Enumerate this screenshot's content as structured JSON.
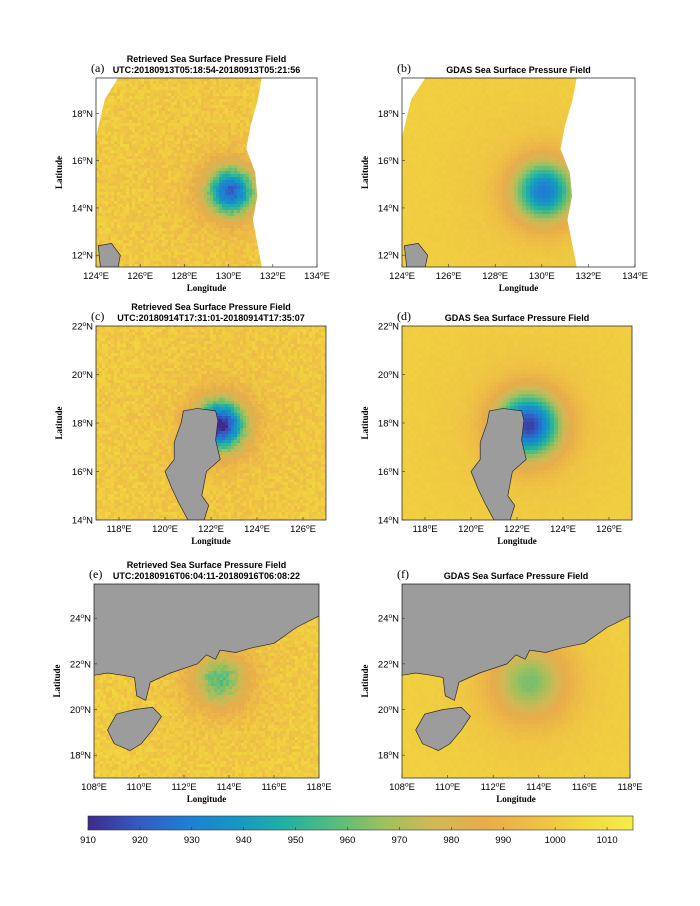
{
  "figure_name": "Sea Surface Pressure Field Comparison",
  "colors": {
    "land": "#9c9c9c",
    "land_edge": "#2a2a2a",
    "colormap": [
      "#3d2a8f",
      "#3559c0",
      "#1e7fd3",
      "#1696c4",
      "#22b1a2",
      "#57bd7c",
      "#9fc05d",
      "#d1b855",
      "#e8ac4b",
      "#eebe45",
      "#f2d93d",
      "#f5ed4a"
    ]
  },
  "chart_data": [
    {
      "type": "heatmap",
      "id": "a",
      "panel_label": "(a)",
      "title": "Retrieved Sea Surface Pressure Field",
      "subtitle": "UTC:20180913T05:18:54-20180913T05:21:56",
      "xlabel": "Longitude",
      "ylabel": "Latitude",
      "xlim": [
        124,
        134
      ],
      "ylim": [
        11.5,
        19.5
      ],
      "xticks": [
        124,
        126,
        128,
        130,
        132,
        134
      ],
      "yticks": [
        12,
        14,
        16,
        18
      ],
      "field": "retrieved",
      "center": [
        130.1,
        14.7
      ],
      "radius_deg": 1.1,
      "min_hpa": 925,
      "ambient_hpa": 1000,
      "swath_east_edge": [
        [
          19.5,
          131.5
        ],
        [
          18.5,
          131.3
        ],
        [
          17.5,
          131.0
        ],
        [
          16.5,
          130.8
        ],
        [
          15.5,
          131.2
        ],
        [
          14.5,
          131.3
        ],
        [
          13.5,
          131.1
        ],
        [
          12.5,
          131.3
        ],
        [
          11.5,
          131.5
        ]
      ],
      "swath_west_edge": [
        [
          19.5,
          125.0
        ],
        [
          18.6,
          124.4
        ],
        [
          17.8,
          124.2
        ],
        [
          17.0,
          124.0
        ]
      ],
      "land": [
        [
          [
            124.1,
            12.4
          ],
          [
            124.7,
            12.5
          ],
          [
            125.1,
            12.0
          ],
          [
            125.0,
            11.5
          ],
          [
            124.2,
            11.5
          ]
        ]
      ]
    },
    {
      "type": "heatmap",
      "id": "b",
      "panel_label": "(b)",
      "title": "GDAS Sea Surface Pressure Field",
      "subtitle": "",
      "xlabel": "Longitude",
      "ylabel": "Latitude",
      "xlim": [
        124,
        134
      ],
      "ylim": [
        11.5,
        19.5
      ],
      "xticks": [
        124,
        126,
        128,
        130,
        132,
        134
      ],
      "yticks": [
        12,
        14,
        16,
        18
      ],
      "field": "gdas",
      "center": [
        130.1,
        14.7
      ],
      "radius_deg": 1.3,
      "min_hpa": 932,
      "ambient_hpa": 1002,
      "swath_east_edge": [
        [
          19.5,
          131.5
        ],
        [
          18.5,
          131.3
        ],
        [
          17.5,
          131.0
        ],
        [
          16.5,
          130.8
        ],
        [
          15.5,
          131.2
        ],
        [
          14.5,
          131.3
        ],
        [
          13.5,
          131.1
        ],
        [
          12.5,
          131.3
        ],
        [
          11.5,
          131.5
        ]
      ],
      "swath_west_edge": [
        [
          19.5,
          125.0
        ],
        [
          18.6,
          124.4
        ],
        [
          17.8,
          124.2
        ],
        [
          17.0,
          124.0
        ]
      ],
      "land": [
        [
          [
            124.1,
            12.4
          ],
          [
            124.7,
            12.5
          ],
          [
            125.1,
            12.0
          ],
          [
            125.0,
            11.5
          ],
          [
            124.2,
            11.5
          ]
        ]
      ]
    },
    {
      "type": "heatmap",
      "id": "c",
      "panel_label": "(c)",
      "title": "Retrieved Sea Surface Pressure Field",
      "subtitle": "UTC:20180914T17:31:01-20180914T17:35:07",
      "xlabel": "Longitude",
      "ylabel": "Latitude",
      "xlim": [
        117,
        127
      ],
      "ylim": [
        14,
        22
      ],
      "xticks": [
        118,
        120,
        122,
        124,
        126
      ],
      "yticks": [
        14,
        16,
        18,
        20,
        22
      ],
      "field": "retrieved",
      "center": [
        122.4,
        17.9
      ],
      "radius_deg": 1.1,
      "min_hpa": 912,
      "ambient_hpa": 1000,
      "land": [
        [
          [
            121.0,
            14.0
          ],
          [
            120.6,
            14.7
          ],
          [
            120.3,
            15.3
          ],
          [
            120.0,
            16.0
          ],
          [
            120.4,
            16.5
          ],
          [
            120.4,
            17.2
          ],
          [
            120.7,
            18.0
          ],
          [
            120.8,
            18.5
          ],
          [
            121.4,
            18.6
          ],
          [
            122.2,
            18.5
          ],
          [
            122.3,
            18.1
          ],
          [
            122.2,
            17.3
          ],
          [
            122.4,
            16.5
          ],
          [
            121.8,
            16.0
          ],
          [
            121.6,
            15.0
          ],
          [
            121.9,
            14.6
          ],
          [
            121.7,
            14.0
          ]
        ]
      ]
    },
    {
      "type": "heatmap",
      "id": "d",
      "panel_label": "(d)",
      "title": "GDAS Sea Surface Pressure Field",
      "subtitle": "",
      "xlabel": "Longitude",
      "ylabel": "Latitude",
      "xlim": [
        117,
        127
      ],
      "ylim": [
        14,
        22
      ],
      "xticks": [
        118,
        120,
        122,
        124,
        126
      ],
      "yticks": [
        14,
        16,
        18,
        20,
        22
      ],
      "field": "gdas",
      "center": [
        122.5,
        17.9
      ],
      "radius_deg": 1.4,
      "min_hpa": 918,
      "ambient_hpa": 1002,
      "land": [
        [
          [
            121.0,
            14.0
          ],
          [
            120.6,
            14.7
          ],
          [
            120.3,
            15.3
          ],
          [
            120.0,
            16.0
          ],
          [
            120.4,
            16.5
          ],
          [
            120.4,
            17.2
          ],
          [
            120.7,
            18.0
          ],
          [
            120.8,
            18.5
          ],
          [
            121.4,
            18.6
          ],
          [
            122.2,
            18.5
          ],
          [
            122.3,
            18.1
          ],
          [
            122.2,
            17.3
          ],
          [
            122.4,
            16.5
          ],
          [
            121.8,
            16.0
          ],
          [
            121.6,
            15.0
          ],
          [
            121.9,
            14.6
          ],
          [
            121.7,
            14.0
          ]
        ]
      ]
    },
    {
      "type": "heatmap",
      "id": "e",
      "panel_label": "(e)",
      "title": "Retrieved Sea Surface Pressure Field",
      "subtitle": "UTC:20180916T06:04:11-20180916T06:08:22",
      "xlabel": "Longitude",
      "ylabel": "Latitude",
      "xlim": [
        108,
        118
      ],
      "ylim": [
        17,
        25.5
      ],
      "xticks": [
        108,
        110,
        112,
        114,
        116,
        118
      ],
      "yticks": [
        18,
        20,
        22,
        24
      ],
      "field": "retrieved",
      "center": [
        113.6,
        21.3
      ],
      "radius_deg": 1.2,
      "min_hpa": 962,
      "ambient_hpa": 1001,
      "land": [
        [
          [
            108.0,
            25.5
          ],
          [
            118.0,
            25.5
          ],
          [
            118.0,
            24.1
          ],
          [
            117.0,
            23.6
          ],
          [
            116.0,
            22.9
          ],
          [
            115.0,
            22.7
          ],
          [
            114.3,
            22.5
          ],
          [
            113.6,
            22.6
          ],
          [
            113.4,
            22.2
          ],
          [
            113.0,
            22.4
          ],
          [
            112.6,
            22.0
          ],
          [
            111.4,
            21.6
          ],
          [
            110.5,
            21.2
          ],
          [
            110.3,
            20.4
          ],
          [
            109.9,
            20.6
          ],
          [
            109.8,
            21.4
          ],
          [
            109.3,
            21.5
          ],
          [
            108.6,
            21.6
          ],
          [
            108.0,
            21.5
          ]
        ],
        [
          [
            108.6,
            19.1
          ],
          [
            109.0,
            19.8
          ],
          [
            109.8,
            20.0
          ],
          [
            110.6,
            20.1
          ],
          [
            111.0,
            19.7
          ],
          [
            110.6,
            19.1
          ],
          [
            110.1,
            18.5
          ],
          [
            109.6,
            18.2
          ],
          [
            108.9,
            18.5
          ]
        ]
      ]
    },
    {
      "type": "heatmap",
      "id": "f",
      "panel_label": "(f)",
      "title": "GDAS Sea Surface Pressure Field",
      "subtitle": "",
      "xlabel": "Longitude",
      "ylabel": "Latitude",
      "xlim": [
        108,
        118
      ],
      "ylim": [
        17,
        25.5
      ],
      "xticks": [
        108,
        110,
        112,
        114,
        116,
        118
      ],
      "yticks": [
        18,
        20,
        22,
        24
      ],
      "field": "gdas",
      "center": [
        113.6,
        21.2
      ],
      "radius_deg": 1.6,
      "min_hpa": 966,
      "ambient_hpa": 1003,
      "land": [
        [
          [
            108.0,
            25.5
          ],
          [
            118.0,
            25.5
          ],
          [
            118.0,
            24.1
          ],
          [
            117.0,
            23.6
          ],
          [
            116.0,
            22.9
          ],
          [
            115.0,
            22.7
          ],
          [
            114.3,
            22.5
          ],
          [
            113.6,
            22.6
          ],
          [
            113.4,
            22.2
          ],
          [
            113.0,
            22.4
          ],
          [
            112.6,
            22.0
          ],
          [
            111.4,
            21.6
          ],
          [
            110.5,
            21.2
          ],
          [
            110.3,
            20.4
          ],
          [
            109.9,
            20.6
          ],
          [
            109.8,
            21.4
          ],
          [
            109.3,
            21.5
          ],
          [
            108.6,
            21.6
          ],
          [
            108.0,
            21.5
          ]
        ],
        [
          [
            108.6,
            19.1
          ],
          [
            109.0,
            19.8
          ],
          [
            109.8,
            20.0
          ],
          [
            110.6,
            20.1
          ],
          [
            111.0,
            19.7
          ],
          [
            110.6,
            19.1
          ],
          [
            110.1,
            18.5
          ],
          [
            109.6,
            18.2
          ],
          [
            108.9,
            18.5
          ]
        ]
      ]
    }
  ],
  "colorbar": {
    "min": 910,
    "max": 1015,
    "ticks": [
      910,
      920,
      930,
      940,
      950,
      960,
      970,
      980,
      990,
      1000,
      1010
    ]
  }
}
